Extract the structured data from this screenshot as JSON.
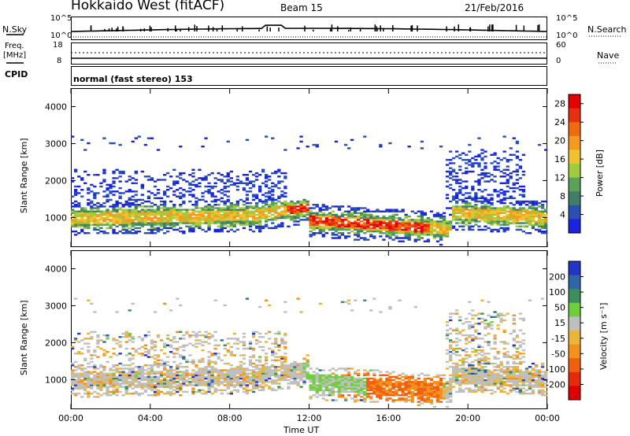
{
  "header": {
    "title": "Hokkaido West (fitACF)",
    "beam": "Beam 15",
    "date": "21/Feb/2016"
  },
  "strip": {
    "nsky_label": "N.Sky",
    "nsky_hi": "10^5",
    "nsky_lo": "10^0",
    "nsky_hi_r": "10^5",
    "nsky_lo_r": "10^0",
    "nsearch_label": "N.Search",
    "freq_label": "Freq.",
    "freq_unit": "[MHz]",
    "freq_hi": "18",
    "freq_lo": "8",
    "nave_hi": "60",
    "nave_lo": "0",
    "nave_label": "Nave",
    "cpid_label": "CPID",
    "mode_text": "normal (fast stereo) 153"
  },
  "colors": {
    "power_scale": [
      "#1a23e0",
      "#2a4fb5",
      "#3f7f6a",
      "#5aa25a",
      "#9fcc3a",
      "#f2c12e",
      "#f49a1f",
      "#f06a10",
      "#e83010",
      "#e60000"
    ],
    "velocity_scale": [
      "#2334c8",
      "#2f66a8",
      "#3d8f5a",
      "#6fcf3a",
      "#bfbfbf",
      "#e9b53a",
      "#f4901c",
      "#f06010",
      "#e62a0a",
      "#e00000"
    ]
  },
  "chart_data": [
    {
      "type": "heatmap",
      "parameter": "Power",
      "ylabel": "Slant Range [km]",
      "xlabel": "Time UT",
      "x_ticks": [
        "00:00",
        "04:00",
        "08:00",
        "12:00",
        "16:00",
        "20:00",
        "00:00"
      ],
      "y_ticks": [
        "1000",
        "2000",
        "3000",
        "4000"
      ],
      "ylim": [
        200,
        4500
      ],
      "colorbar_label": "Power [dB]",
      "colorbar_ticks": [
        "4",
        "8",
        "12",
        "16",
        "20",
        "24",
        "28"
      ],
      "colorbar_range": [
        0,
        30
      ]
    },
    {
      "type": "heatmap",
      "parameter": "Velocity",
      "ylabel": "Slant Range [km]",
      "xlabel": "Time UT",
      "x_ticks": [
        "00:00",
        "04:00",
        "08:00",
        "12:00",
        "16:00",
        "20:00",
        "00:00"
      ],
      "y_ticks": [
        "1000",
        "2000",
        "3000",
        "4000"
      ],
      "ylim": [
        200,
        4500
      ],
      "colorbar_label": "Velocity [m s⁻¹]",
      "colorbar_ticks": [
        "200",
        "100",
        "50",
        "15",
        "-15",
        "-50",
        "-100",
        "-200"
      ],
      "colorbar_range": [
        -250,
        250
      ]
    }
  ]
}
